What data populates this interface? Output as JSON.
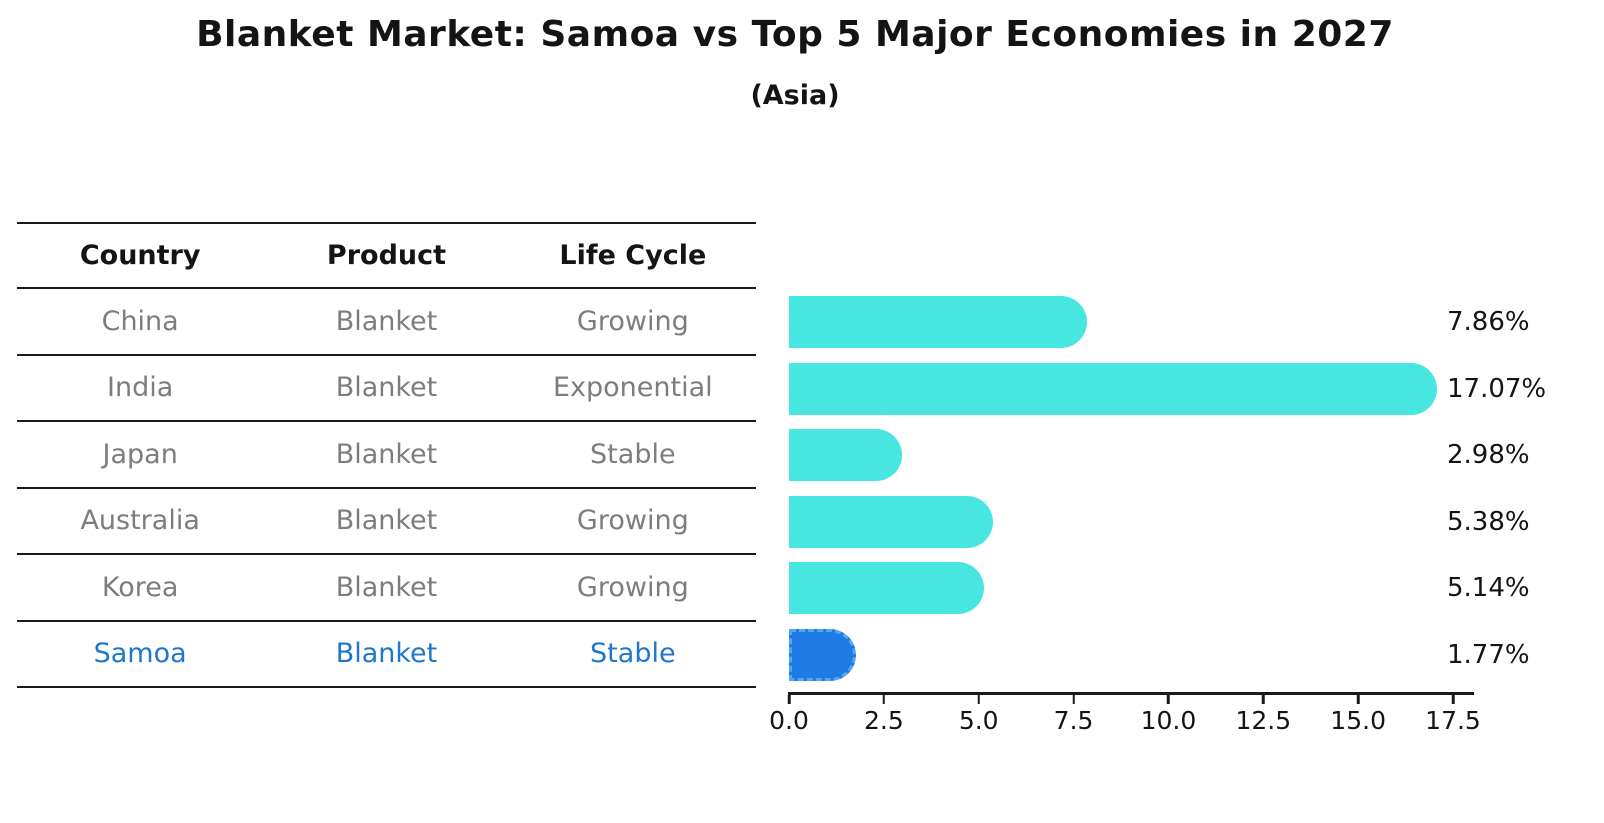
{
  "title": "Blanket Market: Samoa vs Top 5 Major Economies in 2027",
  "subtitle": "(Asia)",
  "table": {
    "headers": [
      "Country",
      "Product",
      "Life Cycle"
    ],
    "rows": [
      {
        "country": "China",
        "product": "Blanket",
        "life_cycle": "Growing",
        "highlight": false
      },
      {
        "country": "India",
        "product": "Blanket",
        "life_cycle": "Exponential",
        "highlight": false
      },
      {
        "country": "Japan",
        "product": "Blanket",
        "life_cycle": "Stable",
        "highlight": false
      },
      {
        "country": "Australia",
        "product": "Blanket",
        "life_cycle": "Growing",
        "highlight": false
      },
      {
        "country": "Korea",
        "product": "Blanket",
        "life_cycle": "Growing",
        "highlight": false
      },
      {
        "country": "Samoa",
        "product": "Blanket",
        "life_cycle": "Stable",
        "highlight": true
      }
    ]
  },
  "chart_data": {
    "type": "bar",
    "orientation": "horizontal",
    "title": "Blanket Market: Samoa vs Top 5 Major Economies in 2027",
    "subtitle": "(Asia)",
    "categories": [
      "China",
      "India",
      "Japan",
      "Australia",
      "Korea",
      "Samoa"
    ],
    "values": [
      7.86,
      17.07,
      2.98,
      5.38,
      5.14,
      1.77
    ],
    "value_labels": [
      "7.86%",
      "17.07%",
      "2.98%",
      "5.38%",
      "5.14%",
      "1.77%"
    ],
    "x_ticks": [
      "0.0",
      "2.5",
      "5.0",
      "7.5",
      "10.0",
      "12.5",
      "15.0",
      "17.5"
    ],
    "xlim": [
      0,
      17.5
    ],
    "xlabel": "",
    "ylabel": "",
    "grid": false,
    "legend": false,
    "highlight_index": 5
  },
  "colors": {
    "bar": "#47e6e1",
    "hl-bar": "#1f7be4",
    "hl-edge": "#55a6f2",
    "hl-text": "#1f77cd",
    "muted": "#7d7d7d",
    "line": "#1a1a1a"
  }
}
